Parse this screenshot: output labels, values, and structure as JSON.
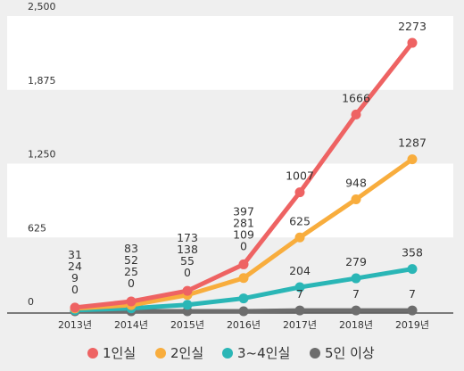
{
  "chart_data": {
    "type": "line",
    "title": "",
    "xlabel": "",
    "ylabel": "",
    "categories": [
      "2013년",
      "2014년",
      "2015년",
      "2016년",
      "2017년",
      "2018년",
      "2019년"
    ],
    "ylim": [
      0,
      2500
    ],
    "yticks": [
      0,
      625,
      1250,
      1875,
      2500
    ],
    "ytick_labels": [
      "0",
      "625",
      "1,250",
      "1,875",
      "2,500"
    ],
    "legend_position": "bottom",
    "series": [
      {
        "name": "1인실",
        "color": "#ee6363",
        "values": [
          31,
          83,
          173,
          397,
          1007,
          1666,
          2273
        ]
      },
      {
        "name": "2인실",
        "color": "#f8ad3d",
        "values": [
          24,
          52,
          138,
          281,
          625,
          948,
          1287
        ]
      },
      {
        "name": "3~4인실",
        "color": "#2ab6b6",
        "values": [
          9,
          25,
          55,
          109,
          204,
          279,
          358
        ]
      },
      {
        "name": "5인 이상",
        "color": "#6d6d6d",
        "values": [
          0,
          0,
          0,
          0,
          7,
          7,
          7
        ]
      }
    ]
  }
}
